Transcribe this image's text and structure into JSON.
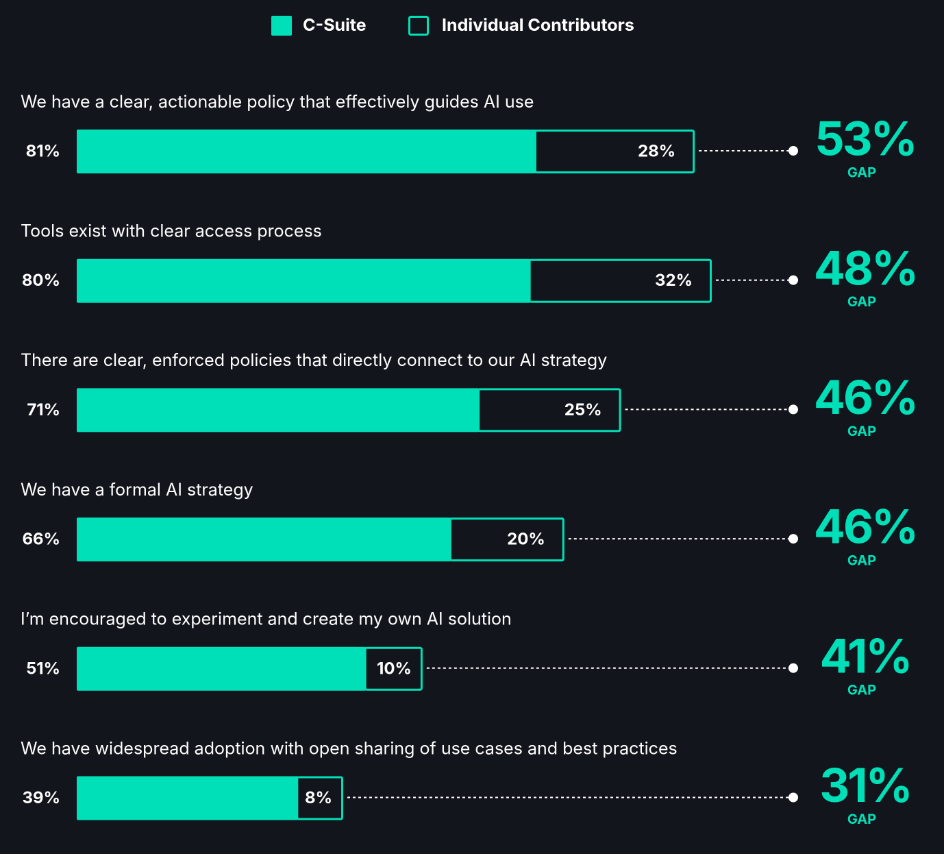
{
  "chart_data": {
    "type": "stacked-bar",
    "categories": [
      "We have a clear, actionable policy that effectively guides AI use",
      "Tools exist with clear access process",
      "There are clear, enforced policies that directly connect to our AI strategy",
      "We have a formal AI strategy",
      "I’m encouraged to experiment and create my own AI solution",
      "We have widespread adoption with open sharing of use cases and best practices"
    ],
    "series": [
      {
        "name": "C-Suite",
        "color": "#00e0b8",
        "values": [
          81,
          80,
          71,
          66,
          51,
          39
        ],
        "value_labels": [
          "81%",
          "80%",
          "71%",
          "66%",
          "51%",
          "39%"
        ]
      },
      {
        "name": "Individual Contributors",
        "color": "#00e0b8",
        "values": [
          28,
          32,
          25,
          20,
          10,
          8
        ],
        "value_labels": [
          "28%",
          "32%",
          "25%",
          "20%",
          "10%",
          "8%"
        ]
      }
    ],
    "gap": {
      "label": "GAP",
      "color": "#00e0b8",
      "values": [
        53,
        48,
        46,
        46,
        41,
        31
      ],
      "value_labels": [
        "53%",
        "48%",
        "46%",
        "46%",
        "41%",
        "31%"
      ]
    },
    "xlim": [
      0,
      130
    ]
  }
}
